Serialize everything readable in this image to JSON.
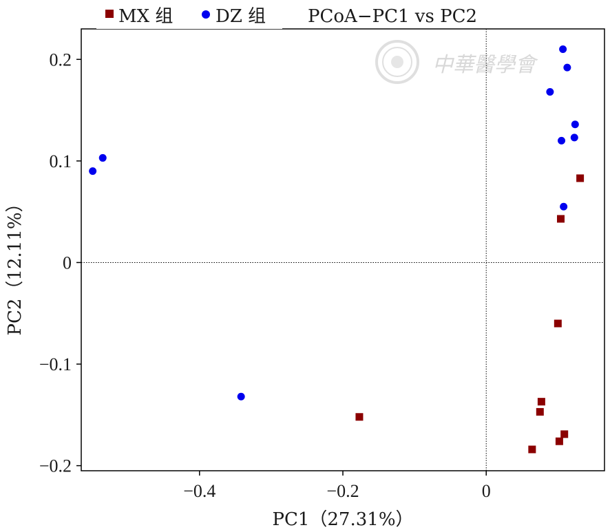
{
  "chart_data": {
    "type": "scatter",
    "title": "PCoA−PC1 vs PC2",
    "xlabel": "PC1（27.31%）",
    "ylabel": "PC2（12.11%）",
    "xlim": [
      -0.565,
      0.165
    ],
    "ylim": [
      -0.205,
      0.23
    ],
    "x_ticks": [
      -0.4,
      -0.2,
      0
    ],
    "x_tick_labels": [
      "−0.4",
      "−0.2",
      "0"
    ],
    "y_ticks": [
      0.2,
      0.1,
      0,
      -0.1,
      -0.2
    ],
    "y_tick_labels": [
      "0.2",
      "0.1",
      "0",
      "−0.1",
      "−0.2"
    ],
    "reference_lines": {
      "x": 0,
      "y": 0,
      "style": "dotted"
    },
    "grid": false,
    "legend_position": "top",
    "series": [
      {
        "name": "MX 组",
        "marker": "square",
        "color": "#8b0000",
        "points": [
          {
            "x": 0.131,
            "y": 0.083
          },
          {
            "x": 0.104,
            "y": 0.043
          },
          {
            "x": 0.1,
            "y": -0.06
          },
          {
            "x": -0.177,
            "y": -0.152
          },
          {
            "x": 0.077,
            "y": -0.137
          },
          {
            "x": 0.075,
            "y": -0.147
          },
          {
            "x": 0.109,
            "y": -0.169
          },
          {
            "x": 0.102,
            "y": -0.176
          },
          {
            "x": 0.064,
            "y": -0.184
          }
        ]
      },
      {
        "name": "DZ 组",
        "marker": "circle",
        "color": "#0000ee",
        "points": [
          {
            "x": 0.107,
            "y": 0.21
          },
          {
            "x": 0.113,
            "y": 0.192
          },
          {
            "x": 0.089,
            "y": 0.168
          },
          {
            "x": 0.124,
            "y": 0.136
          },
          {
            "x": 0.123,
            "y": 0.123
          },
          {
            "x": 0.105,
            "y": 0.12
          },
          {
            "x": 0.108,
            "y": 0.055
          },
          {
            "x": -0.535,
            "y": 0.103
          },
          {
            "x": -0.549,
            "y": 0.09
          },
          {
            "x": -0.342,
            "y": -0.132
          }
        ]
      }
    ]
  },
  "watermark": {
    "text": "中華醫學會",
    "icon": "society-seal-icon"
  }
}
